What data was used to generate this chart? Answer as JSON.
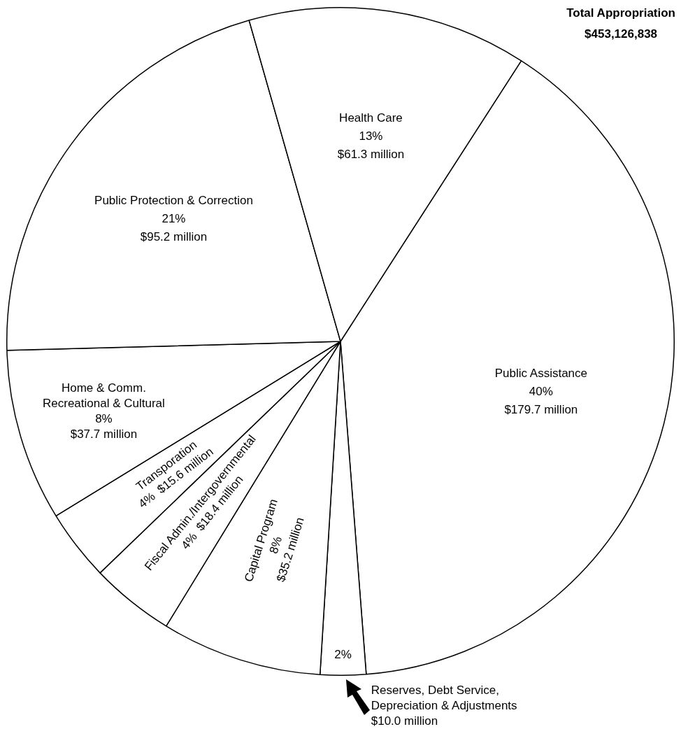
{
  "chart_data": {
    "type": "pie",
    "title": "Total Appropriation",
    "subtitle": "$453,126,838",
    "categories": [
      "Public Assistance",
      "Reserves, Debt Service,\nDepreciation & Adjustments",
      "Capital Program",
      "Fiscal Admin./Intergovernmental",
      "Transporation",
      "Home & Comm.\nRecreational & Cultural",
      "Public Protection & Correction",
      "Health Care"
    ],
    "values": [
      179.7,
      10.0,
      35.2,
      18.4,
      15.6,
      37.7,
      95.2,
      61.3
    ],
    "value_labels": [
      "$179.7 million",
      "$10.0 million",
      "$35.2 million",
      "$18.4 million",
      "$15.6 million",
      "$37.7 million",
      "$95.2 million",
      "$61.3 million"
    ],
    "annotations": [
      "40%",
      "2%",
      "8%",
      "4%",
      "4%",
      "8%",
      "21%",
      "13%"
    ],
    "colors": [
      "#ffffff",
      "#ffffff",
      "#ffffff",
      "#ffffff",
      "#ffffff",
      "#ffffff",
      "#ffffff",
      "#ffffff"
    ]
  }
}
